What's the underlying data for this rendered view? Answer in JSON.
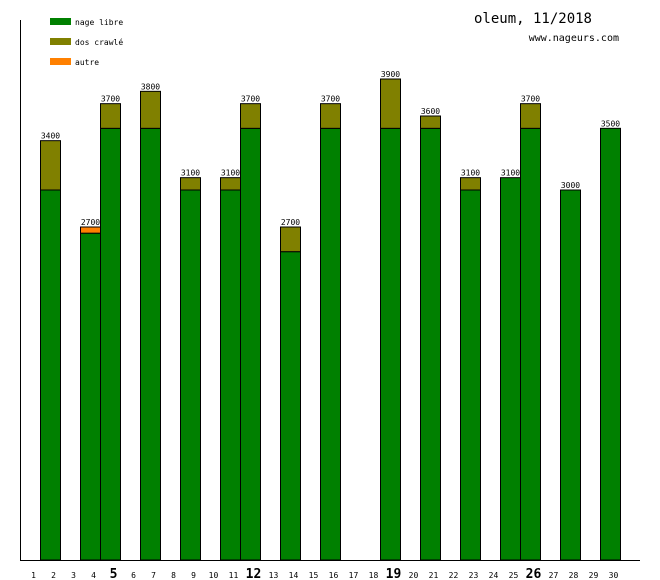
{
  "chart_data": {
    "type": "bar",
    "stacked": true,
    "title": "oleum, 11/2018",
    "subtitle": "www.nageurs.com",
    "xlabel": "",
    "ylabel": "",
    "ylim": [
      0,
      4400
    ],
    "legend_position": "top-left",
    "categories": [
      "1",
      "2",
      "3",
      "4",
      "5",
      "6",
      "7",
      "8",
      "9",
      "10",
      "11",
      "12",
      "13",
      "14",
      "15",
      "16",
      "17",
      "18",
      "19",
      "20",
      "21",
      "22",
      "23",
      "24",
      "25",
      "26",
      "27",
      "28",
      "29",
      "30"
    ],
    "bold_categories": [
      "5",
      "12",
      "19",
      "26"
    ],
    "series": [
      {
        "name": "nage libre",
        "color": "#008000",
        "values": [
          0,
          3000,
          0,
          2650,
          3500,
          0,
          3500,
          0,
          3000,
          0,
          3000,
          3500,
          0,
          2500,
          0,
          3500,
          0,
          0,
          3500,
          0,
          3500,
          0,
          3000,
          0,
          3100,
          3500,
          0,
          3000,
          0,
          3500
        ]
      },
      {
        "name": "dos crawlé",
        "color": "#808000",
        "values": [
          0,
          400,
          0,
          0,
          200,
          0,
          300,
          0,
          100,
          0,
          100,
          200,
          0,
          200,
          0,
          200,
          0,
          0,
          400,
          0,
          100,
          0,
          100,
          0,
          0,
          200,
          0,
          0,
          0,
          0
        ]
      },
      {
        "name": "autre",
        "color": "#ff8000",
        "values": [
          0,
          0,
          0,
          50,
          0,
          0,
          0,
          0,
          0,
          0,
          0,
          0,
          0,
          0,
          0,
          0,
          0,
          0,
          0,
          0,
          0,
          0,
          0,
          0,
          0,
          0,
          0,
          0,
          0,
          0
        ]
      }
    ],
    "totals": [
      0,
      3400,
      0,
      2700,
      3700,
      0,
      3800,
      0,
      3100,
      0,
      3100,
      3700,
      0,
      2700,
      0,
      3700,
      0,
      0,
      3900,
      0,
      3600,
      0,
      3100,
      0,
      3100,
      3700,
      0,
      3000,
      0,
      3500
    ]
  }
}
